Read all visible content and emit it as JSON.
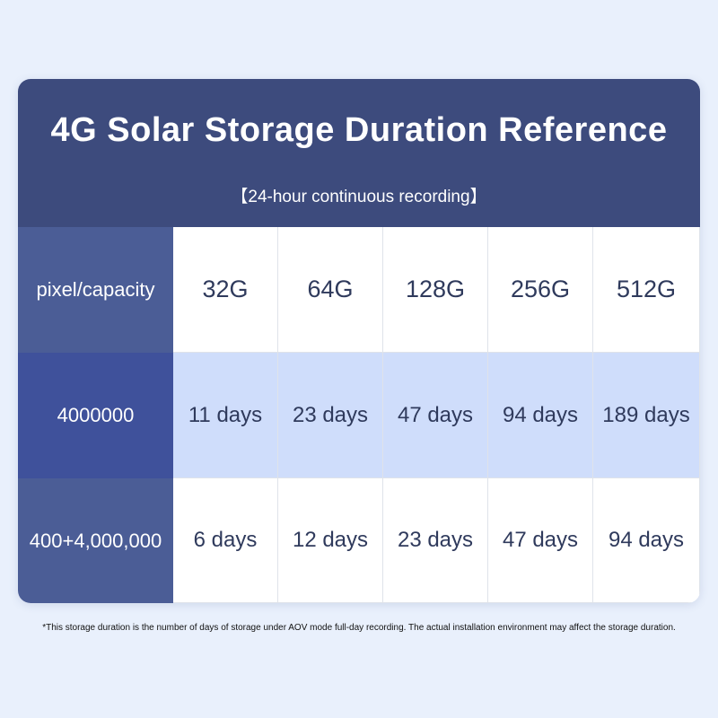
{
  "header": {
    "title": "4G Solar Storage Duration Reference",
    "subtitle": "【24-hour continuous recording】"
  },
  "table": {
    "columns": [
      "pixel/capacity",
      "32G",
      "64G",
      "128G",
      "256G",
      "512G"
    ],
    "rows": [
      [
        "4000000",
        "11 days",
        "23 days",
        "47 days",
        "94 days",
        "189 days"
      ],
      [
        "400+4,000,000",
        "6 days",
        "12 days",
        "23 days",
        "47 days",
        "94 days"
      ]
    ]
  },
  "footnote": "*This storage duration is the number of days of storage under AOV mode full-day recording. The actual installation environment may affect the storage duration."
}
